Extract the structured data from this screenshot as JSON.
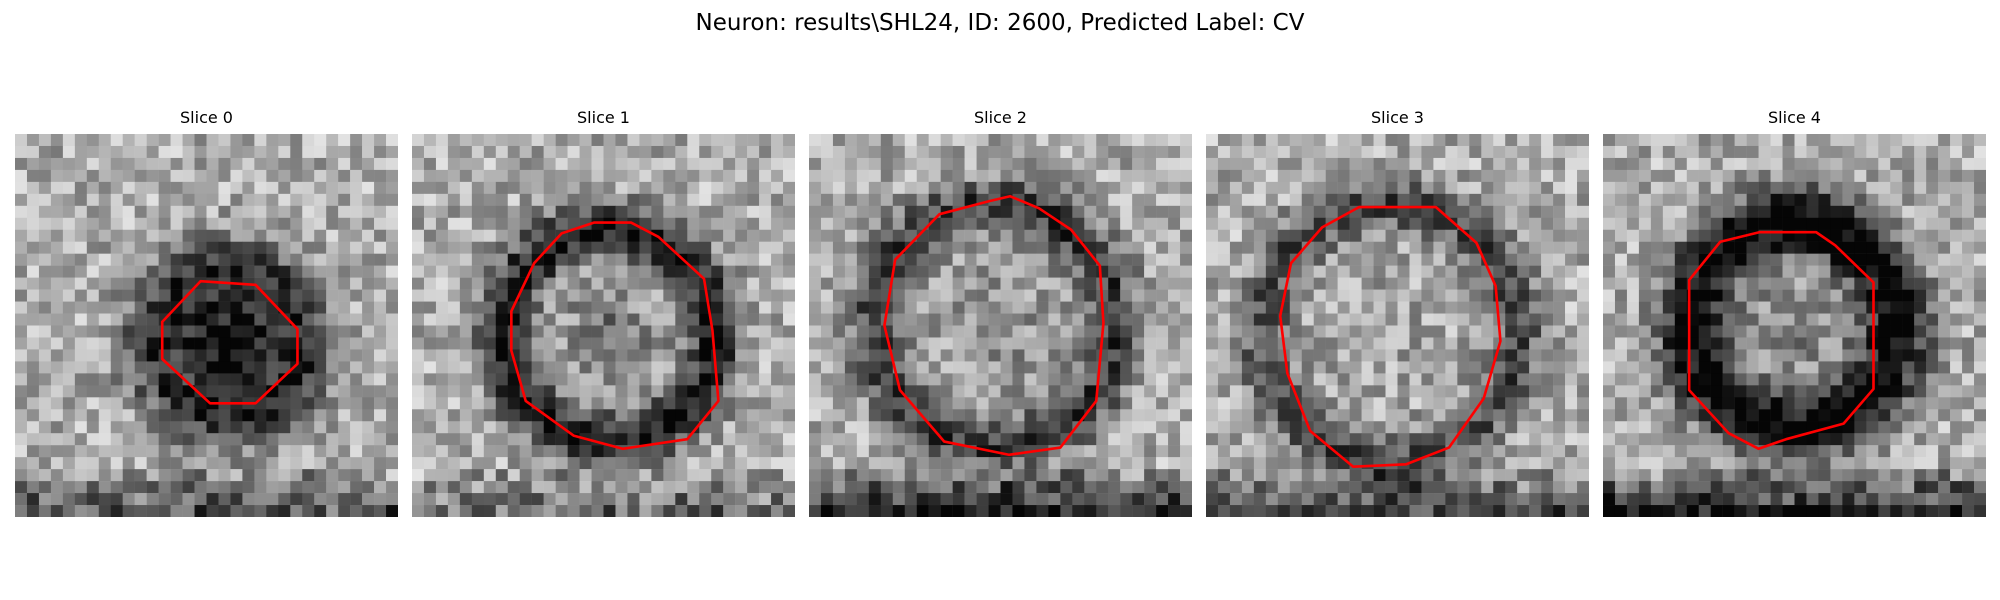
{
  "figure": {
    "title": "Neuron: results\\SHL24, ID: 2600, Predicted Label: CV"
  },
  "colors": {
    "contour": "#ff0000",
    "background": "#ffffff"
  },
  "panels": [
    {
      "title": "Slice 0"
    },
    {
      "title": "Slice 1"
    },
    {
      "title": "Slice 2"
    },
    {
      "title": "Slice 3"
    },
    {
      "title": "Slice 4"
    }
  ]
}
